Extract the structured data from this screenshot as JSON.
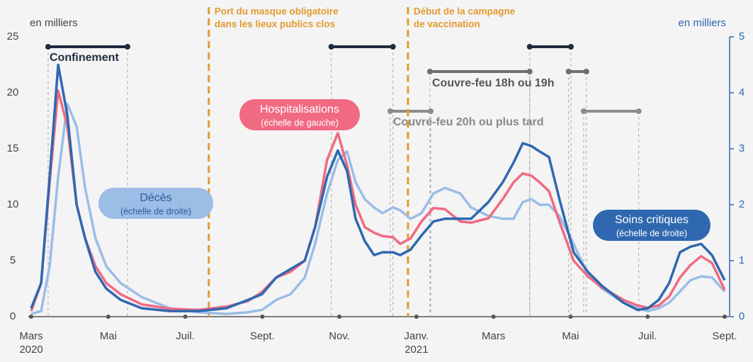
{
  "chart_data": {
    "type": "line",
    "ylabel": "en milliers",
    "y2label": "en milliers",
    "ylim": [
      0,
      25
    ],
    "yticks": [
      0,
      5,
      10,
      15,
      20,
      25
    ],
    "y2lim": [
      0,
      5
    ],
    "y2ticks": [
      0,
      1,
      2,
      3,
      4,
      5
    ],
    "xlim": [
      0,
      18
    ],
    "xticks": [
      {
        "value": 0,
        "label": "Mars"
      },
      {
        "value": 2,
        "label": "Mai"
      },
      {
        "value": 4,
        "label": "Juil."
      },
      {
        "value": 6,
        "label": "Sept."
      },
      {
        "value": 8,
        "label": "Nov."
      },
      {
        "value": 10,
        "label": "Janv."
      },
      {
        "value": 12,
        "label": "Mars"
      },
      {
        "value": 14,
        "label": "Mai"
      },
      {
        "value": 16,
        "label": "Juil."
      },
      {
        "value": 18,
        "label": "Sept."
      }
    ],
    "year_labels": [
      {
        "value": 0,
        "label": "2020"
      },
      {
        "value": 10,
        "label": "2021"
      }
    ],
    "x": [
      0,
      0.26,
      0.48,
      0.7,
      0.94,
      1.18,
      1.4,
      1.67,
      1.95,
      2.32,
      2.87,
      3.6,
      4.34,
      5.07,
      5.63,
      5.99,
      6.36,
      6.73,
      7.1,
      7.37,
      7.68,
      7.96,
      8.2,
      8.42,
      8.66,
      8.9,
      9.12,
      9.39,
      9.58,
      9.85,
      10.13,
      10.44,
      10.74,
      11.14,
      11.42,
      11.87,
      12.24,
      12.52,
      12.76,
      12.98,
      13.2,
      13.44,
      13.71,
      14.08,
      14.45,
      14.82,
      15.37,
      15.74,
      16.01,
      16.29,
      16.56,
      16.84,
      17.11,
      17.39,
      17.67,
      18.0
    ],
    "series": [
      {
        "name": "Hospitalisations",
        "scale_label": "(échelle de gauche)",
        "color": "#f06a82",
        "values": [
          0.5,
          3,
          12,
          20.2,
          17,
          10,
          7,
          4.5,
          3,
          2,
          1.1,
          0.7,
          0.6,
          0.9,
          1.4,
          2.2,
          3.5,
          4,
          5,
          8,
          14,
          16.4,
          13.5,
          10,
          8,
          7.5,
          7.2,
          7.1,
          6.5,
          7,
          8.5,
          9.7,
          9.6,
          8.5,
          8.4,
          8.8,
          10.5,
          12,
          12.8,
          12.6,
          12,
          11.2,
          8.5,
          5,
          3.6,
          2.6,
          1.5,
          1,
          0.8,
          1,
          1.8,
          3.5,
          4.6,
          5.4,
          4.8,
          2.4
        ]
      },
      {
        "name": "Décès",
        "scale_label": "(échelle de droite)",
        "color": "#9bbde6",
        "axis": "y2",
        "values": [
          0.05,
          0.1,
          0.9,
          2.5,
          3.8,
          3.4,
          2.3,
          1.4,
          0.9,
          0.6,
          0.35,
          0.15,
          0.08,
          0.05,
          0.08,
          0.12,
          0.3,
          0.4,
          0.7,
          1.3,
          2.2,
          2.8,
          2.95,
          2.4,
          2.1,
          1.95,
          1.85,
          1.95,
          1.9,
          1.75,
          1.85,
          2.2,
          2.3,
          2.2,
          1.95,
          1.8,
          1.75,
          1.75,
          2.05,
          2.1,
          2.0,
          2.0,
          1.8,
          1.3,
          0.75,
          0.5,
          0.25,
          0.15,
          0.1,
          0.15,
          0.25,
          0.45,
          0.65,
          0.72,
          0.7,
          0.45
        ]
      },
      {
        "name": "Soins critiques",
        "scale_label": "(échelle de droite)",
        "color": "#2f68b0",
        "axis": "y2",
        "values": [
          0.15,
          0.6,
          2.5,
          4.5,
          3.6,
          2.0,
          1.4,
          0.8,
          0.5,
          0.3,
          0.15,
          0.1,
          0.1,
          0.15,
          0.3,
          0.4,
          0.7,
          0.85,
          1.0,
          1.6,
          2.5,
          2.97,
          2.6,
          1.75,
          1.35,
          1.1,
          1.15,
          1.15,
          1.1,
          1.2,
          1.45,
          1.7,
          1.75,
          1.75,
          1.75,
          2.05,
          2.4,
          2.75,
          3.1,
          3.05,
          2.95,
          2.85,
          2.1,
          1.15,
          0.8,
          0.55,
          0.25,
          0.12,
          0.15,
          0.3,
          0.6,
          1.15,
          1.25,
          1.3,
          1.1,
          0.65
        ]
      }
    ],
    "events": [
      {
        "lines": [
          "Port du masque obligatoire",
          "dans les lieux publics clos"
        ],
        "x": 4.61,
        "color": "#e39a2f"
      },
      {
        "lines": [
          "Début de la campagne",
          "de vaccination"
        ],
        "x": 9.78,
        "color": "#e39a2f"
      }
    ],
    "periods": [
      {
        "name": "Confinement",
        "color": "#1f2d3d",
        "ranges": [
          [
            0.44,
            2.5
          ],
          [
            7.79,
            9.39
          ],
          [
            12.94,
            14.01
          ]
        ]
      },
      {
        "name": "Couvre-feu 18h ou 19h",
        "color": "#6e6e6e",
        "ranges": [
          [
            10.35,
            12.94
          ],
          [
            13.95,
            14.41
          ]
        ]
      },
      {
        "name": "Couvre-feu 20h ou plus tard",
        "color": "#8c8c8c",
        "ranges": [
          [
            9.32,
            10.37
          ],
          [
            14.34,
            15.77
          ]
        ]
      }
    ]
  }
}
